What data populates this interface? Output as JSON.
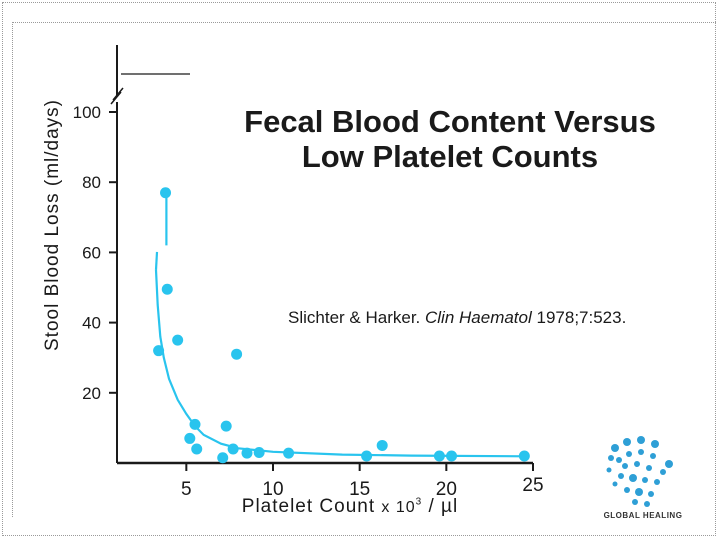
{
  "chart_data": {
    "type": "scatter",
    "title_line1": "Fecal Blood Content Versus",
    "title_line2": "Low Platelet Counts",
    "citation": {
      "authors": "Slichter & Harker.",
      "journal": "Clin Haematol",
      "details": "1978;7:523."
    },
    "ylabel": "Stool Blood Loss (ml/days)",
    "xlabel_main": "Platelet Count",
    "xlabel_unit": "x 10",
    "xlabel_sup": "3",
    "xlabel_tail": "/ µl",
    "xlim": [
      1,
      25
    ],
    "ylim": [
      0,
      100
    ],
    "axis_break": "y-axis break above 100",
    "xticks": [
      5,
      10,
      15,
      20,
      25
    ],
    "yticks": [
      20,
      40,
      60,
      80,
      100
    ],
    "grid": false,
    "series": [
      {
        "type": "scatter",
        "color": "#29c4ee",
        "points": [
          {
            "x": 3.8,
            "y": 77
          },
          {
            "x": 3.9,
            "y": 49.5
          },
          {
            "x": 3.4,
            "y": 32
          },
          {
            "x": 4.5,
            "y": 35
          },
          {
            "x": 7.9,
            "y": 31
          },
          {
            "x": 5.5,
            "y": 11
          },
          {
            "x": 7.3,
            "y": 10.5
          },
          {
            "x": 5.2,
            "y": 7
          },
          {
            "x": 5.6,
            "y": 4
          },
          {
            "x": 7.7,
            "y": 4
          },
          {
            "x": 7.1,
            "y": 1.5
          },
          {
            "x": 8.5,
            "y": 2.8
          },
          {
            "x": 9.2,
            "y": 3
          },
          {
            "x": 10.9,
            "y": 2.8
          },
          {
            "x": 15.4,
            "y": 2
          },
          {
            "x": 16.3,
            "y": 5
          },
          {
            "x": 19.6,
            "y": 2
          },
          {
            "x": 20.3,
            "y": 2
          },
          {
            "x": 24.5,
            "y": 2
          }
        ]
      },
      {
        "type": "line",
        "color": "#29c4ee",
        "points": [
          {
            "x": 3.25,
            "y": 55
          },
          {
            "x": 3.35,
            "y": 45
          },
          {
            "x": 3.5,
            "y": 36
          },
          {
            "x": 3.7,
            "y": 30
          },
          {
            "x": 4,
            "y": 24
          },
          {
            "x": 4.5,
            "y": 18
          },
          {
            "x": 5,
            "y": 14
          },
          {
            "x": 5.5,
            "y": 10.5
          },
          {
            "x": 6,
            "y": 8
          },
          {
            "x": 7,
            "y": 5.5
          },
          {
            "x": 8,
            "y": 4.2
          },
          {
            "x": 10,
            "y": 3.2
          },
          {
            "x": 14,
            "y": 2.4
          },
          {
            "x": 18,
            "y": 2.1
          },
          {
            "x": 24.5,
            "y": 1.9
          }
        ]
      }
    ]
  },
  "logo": {
    "icon": "hand-icon",
    "text": "GLOBAL HEALING"
  }
}
